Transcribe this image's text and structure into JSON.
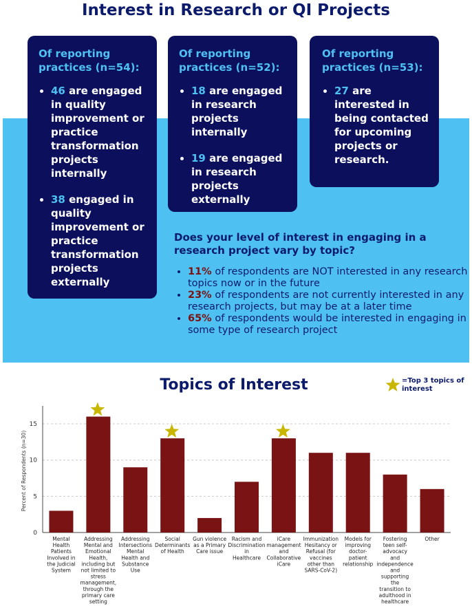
{
  "header": {
    "title": "Interest in Research or QI Projects"
  },
  "cards": [
    {
      "heading": "Of reporting practices (n=54):",
      "items": [
        {
          "value": "46",
          "text": " are engaged in quality improvement or practice transformation projects internally"
        },
        {
          "value": "38",
          "text": " engaged in quality improvement or practice transformation projects externally"
        }
      ]
    },
    {
      "heading": "Of reporting practices (n=52):",
      "items": [
        {
          "value": "18",
          "text": " are engaged in research projects internally"
        },
        {
          "value": "19",
          "text": " are engaged in research projects externally"
        }
      ]
    },
    {
      "heading": "Of reporting practices (n=53):",
      "items": [
        {
          "value": "27",
          "text": " are interested in being contacted for upcoming projects or research."
        }
      ]
    }
  ],
  "topic_question": {
    "question": "Does your level of interest in engaging in a research project vary by topic?",
    "items": [
      {
        "pct": "11%",
        "text": " of respondents are NOT interested in any research topics now or in the future"
      },
      {
        "pct": "23%",
        "text": " of respondents are not currently interested in any research projects, but may be at a later time"
      },
      {
        "pct": "65%",
        "text": " of respondents would be interested in engaging in some type of research project"
      }
    ]
  },
  "chart_data": {
    "type": "bar",
    "title": "Topics of Interest",
    "ylabel": "Percent of Respondents (n=30)",
    "xlabel": "",
    "ylim": [
      0,
      17
    ],
    "yticks": [
      0,
      5,
      10,
      15
    ],
    "grid": true,
    "bar_color": "#7a1414",
    "star_color": "#c9b600",
    "legend": {
      "text": "=Top 3 topics of interest",
      "placement": "top-right"
    },
    "categories": [
      "Mental Health Patients Involved in the Judicial System",
      "Addressing Mental and Emotional Health, including but not limited to stress management, through the primary care setting",
      "Addressing Intersections Mental Health and Substance Use",
      "Social Determinants of Health",
      "Gun violence as a Primary Care issue",
      "Racism and Discrimination in Healthcare",
      "iCare management and Collaborative iCare",
      "Immunization Hesitancy or Refusal (for vaccines other than SARS-CoV-2)",
      "Models for improving doctor-patient relationship",
      "Fostering teen self-advocacy and independence and supporting the transition to adulthood in healthcare",
      "Other"
    ],
    "category_lines": [
      [
        "Mental",
        "Health",
        "Patients",
        "Involved in",
        "the Judicial",
        "System"
      ],
      [
        "Addressing",
        "Mental and",
        "Emotional",
        "Health,",
        "including but",
        "not limited to",
        "stress",
        "management,",
        "through the",
        "primary care",
        "setting"
      ],
      [
        "Addressing",
        "Intersections",
        "Mental",
        "Health and",
        "Substance",
        "Use"
      ],
      [
        "Social",
        "Determinants",
        "of Health"
      ],
      [
        "Gun violence",
        "as a Primary",
        "Care issue"
      ],
      [
        "Racism and",
        "Discrimination",
        "in",
        "Healthcare"
      ],
      [
        "iCare",
        "management",
        "and",
        "Collaborative",
        "iCare"
      ],
      [
        "Immunization",
        "Hesitancy or",
        "Refusal (for",
        "vaccines",
        "other than",
        "SARS-CoV-2)"
      ],
      [
        "Models for",
        "improving",
        "doctor-",
        "patient",
        "relationship"
      ],
      [
        "Fostering",
        "teen self-",
        "advocacy",
        "and",
        "independence",
        "and",
        "supporting",
        "the",
        "transition to",
        "adulthood in",
        "healthcare"
      ],
      [
        "Other"
      ]
    ],
    "values": [
      3,
      16,
      9,
      13,
      2,
      7,
      13,
      11,
      11,
      8,
      6
    ],
    "top3": [
      1,
      3,
      6
    ]
  }
}
